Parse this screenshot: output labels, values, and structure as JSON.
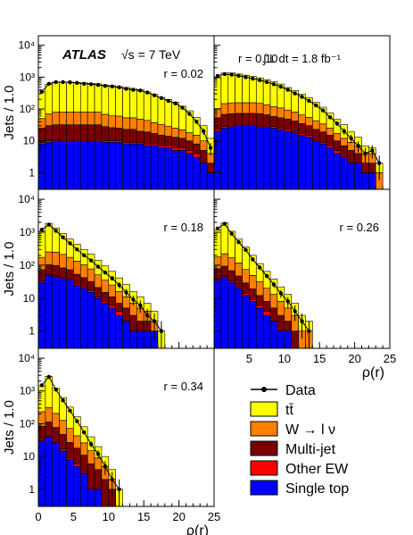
{
  "figure": {
    "experiment": "ATLAS",
    "energy_label": "√s = 7 TeV",
    "lumi_label": "∫ L dt = 1.8 fb⁻¹"
  },
  "legend": [
    {
      "label": "Data",
      "kind": "data"
    },
    {
      "label": "tt̄",
      "color": "#ffff00"
    },
    {
      "label": "W → l ν",
      "color": "#ff7f00"
    },
    {
      "label": "Multi-jet",
      "color": "#7a0000"
    },
    {
      "label": "Other EW",
      "color": "#ff0000"
    },
    {
      "label": "Single top",
      "color": "#0000ff"
    }
  ],
  "colors": {
    "single_top": "#0000ff",
    "other_ew": "#ff0000",
    "multijet": "#7a0000",
    "w_lnu": "#ff7f00",
    "ttbar": "#ffff00"
  },
  "chart_data": [
    {
      "type": "bar",
      "panel_label": "r = 0.02",
      "ylabel": "Jets / 1.0",
      "xlabel": "",
      "xlim": [
        0,
        25
      ],
      "ylim": [
        0.3,
        20000
      ],
      "yscale": "log",
      "yticks": [
        "1",
        "10",
        "10²",
        "10³",
        "10⁴"
      ],
      "xticks": [],
      "x_bin_starts": [
        0,
        1,
        2,
        3,
        4,
        5,
        6,
        7,
        8,
        9,
        10,
        11,
        12,
        13,
        14,
        15,
        16,
        17,
        18,
        19,
        20,
        21,
        22,
        23,
        24
      ],
      "stacks": {
        "single_top": [
          8,
          9,
          10,
          10,
          10,
          10,
          10,
          10,
          10,
          9,
          9,
          9,
          8,
          8,
          8,
          7,
          7,
          6,
          6,
          5,
          5,
          4,
          3,
          2,
          1
        ],
        "other_ew": [
          1,
          1,
          1,
          1,
          1,
          1,
          1,
          1,
          1,
          1,
          1,
          1,
          1,
          1,
          1,
          1,
          1,
          1,
          1,
          1,
          1,
          1,
          1,
          0,
          0
        ],
        "multijet": [
          16,
          20,
          21,
          21,
          21,
          21,
          21,
          21,
          21,
          18,
          16,
          15,
          14,
          14,
          11,
          11,
          9,
          8,
          7,
          7,
          6,
          5,
          4,
          3,
          1
        ],
        "w_lnu": [
          25,
          40,
          48,
          48,
          48,
          48,
          48,
          48,
          48,
          40,
          35,
          35,
          30,
          30,
          28,
          25,
          20,
          18,
          15,
          12,
          10,
          8,
          7,
          5,
          2
        ],
        "ttbar": [
          300,
          530,
          620,
          620,
          620,
          600,
          580,
          560,
          540,
          500,
          480,
          450,
          420,
          390,
          360,
          300,
          250,
          200,
          170,
          140,
          100,
          70,
          40,
          20,
          8
        ]
      },
      "data_values": [
        350,
        620,
        700,
        700,
        690,
        660,
        620,
        600,
        570,
        530,
        510,
        480,
        430,
        400,
        380,
        330,
        270,
        220,
        180,
        150,
        110,
        70,
        40,
        20,
        6
      ]
    },
    {
      "type": "bar",
      "panel_label": "r = 0.10",
      "ylabel": "",
      "xlabel": "",
      "xlim": [
        0,
        25
      ],
      "ylim": [
        0.3,
        20000
      ],
      "yscale": "log",
      "yticks": [],
      "xticks": [],
      "x_bin_starts": [
        0,
        1,
        2,
        3,
        4,
        5,
        6,
        7,
        8,
        9,
        10,
        11,
        12,
        13,
        14,
        15,
        16,
        17,
        18,
        19,
        20,
        21,
        22,
        23,
        24
      ],
      "stacks": {
        "single_top": [
          20,
          25,
          28,
          30,
          30,
          30,
          28,
          28,
          25,
          22,
          20,
          18,
          15,
          13,
          10,
          8,
          6,
          4,
          3,
          2,
          2,
          1,
          1,
          0,
          0
        ],
        "other_ew": [
          3,
          3,
          3,
          3,
          3,
          3,
          3,
          3,
          3,
          3,
          3,
          2,
          2,
          2,
          1,
          1,
          1,
          1,
          0,
          0,
          0,
          0,
          0,
          0,
          0
        ],
        "multijet": [
          30,
          40,
          40,
          40,
          40,
          40,
          40,
          35,
          30,
          28,
          25,
          22,
          18,
          15,
          12,
          10,
          8,
          5,
          4,
          3,
          2,
          1,
          1,
          0,
          0
        ],
        "w_lnu": [
          50,
          80,
          85,
          85,
          85,
          85,
          80,
          70,
          60,
          55,
          45,
          38,
          30,
          25,
          20,
          15,
          10,
          7,
          5,
          4,
          3,
          2,
          2,
          1,
          0
        ],
        "ttbar": [
          850,
          1200,
          1200,
          1100,
          1000,
          900,
          800,
          700,
          600,
          500,
          380,
          300,
          230,
          170,
          120,
          80,
          50,
          30,
          20,
          10,
          6,
          3,
          2,
          1,
          0
        ]
      },
      "data_values": [
        1100,
        1250,
        1200,
        1100,
        1000,
        900,
        800,
        700,
        600,
        500,
        400,
        310,
        240,
        180,
        130,
        90,
        55,
        35,
        20,
        12,
        7,
        4,
        5,
        2,
        0
      ]
    },
    {
      "type": "bar",
      "panel_label": "r = 0.18",
      "ylabel": "Jets / 1.0",
      "xlabel": "",
      "xlim": [
        0,
        25
      ],
      "ylim": [
        0.3,
        20000
      ],
      "yscale": "log",
      "yticks": [
        "1",
        "10",
        "10²",
        "10³",
        "10⁴"
      ],
      "xticks": [],
      "x_bin_starts": [
        0,
        1,
        2,
        3,
        4,
        5,
        6,
        7,
        8,
        9,
        10,
        11,
        12,
        13,
        14,
        15,
        16,
        17,
        18,
        19,
        20,
        21,
        22,
        23,
        24
      ],
      "stacks": {
        "single_top": [
          30,
          50,
          45,
          40,
          35,
          25,
          20,
          15,
          10,
          7,
          5,
          3,
          2,
          1,
          1,
          1,
          1,
          0,
          0,
          0,
          0,
          0,
          0,
          0,
          0
        ],
        "other_ew": [
          3,
          3,
          3,
          3,
          3,
          3,
          2,
          2,
          1,
          1,
          1,
          1,
          0,
          0,
          0,
          0,
          0,
          0,
          0,
          0,
          0,
          0,
          0,
          0,
          0
        ],
        "multijet": [
          40,
          50,
          50,
          40,
          35,
          25,
          20,
          15,
          10,
          7,
          5,
          3,
          3,
          2,
          1,
          1,
          0,
          0,
          0,
          0,
          0,
          0,
          0,
          0,
          0
        ],
        "w_lnu": [
          100,
          150,
          150,
          130,
          100,
          80,
          60,
          45,
          30,
          20,
          14,
          9,
          6,
          4,
          3,
          2,
          1,
          0,
          0,
          0,
          0,
          0,
          0,
          0,
          0
        ],
        "ttbar": [
          900,
          1600,
          1100,
          700,
          450,
          300,
          200,
          140,
          90,
          60,
          40,
          25,
          15,
          9,
          6,
          3,
          2,
          1,
          0,
          0,
          0,
          0,
          0,
          0,
          0
        ]
      },
      "data_values": [
        1200,
        1700,
        1100,
        700,
        460,
        300,
        200,
        140,
        90,
        60,
        40,
        25,
        15,
        9,
        6,
        3,
        2,
        1,
        0,
        0,
        0,
        0,
        0,
        0,
        0
      ]
    },
    {
      "type": "bar",
      "panel_label": "r = 0.26",
      "ylabel": "",
      "xlabel": "ρ(r)",
      "xlim": [
        0,
        25
      ],
      "ylim": [
        0.3,
        20000
      ],
      "yscale": "log",
      "yticks": [],
      "xticks": [
        "5",
        "10",
        "15",
        "20",
        "25"
      ],
      "x_bin_starts": [
        0,
        1,
        2,
        3,
        4,
        5,
        6,
        7,
        8,
        9,
        10,
        11,
        12,
        13,
        14,
        15,
        16,
        17,
        18,
        19,
        20,
        21,
        22,
        23,
        24
      ],
      "stacks": {
        "single_top": [
          35,
          45,
          30,
          20,
          12,
          8,
          5,
          3,
          2,
          1,
          1,
          0,
          0,
          0,
          0,
          0,
          0,
          0,
          0,
          0,
          0,
          0,
          0,
          0,
          0
        ],
        "other_ew": [
          3,
          3,
          3,
          2,
          2,
          1,
          1,
          1,
          0,
          0,
          0,
          0,
          0,
          0,
          0,
          0,
          0,
          0,
          0,
          0,
          0,
          0,
          0,
          0,
          0
        ],
        "multijet": [
          40,
          45,
          35,
          25,
          15,
          10,
          6,
          4,
          3,
          2,
          1,
          1,
          0,
          0,
          0,
          0,
          0,
          0,
          0,
          0,
          0,
          0,
          0,
          0,
          0
        ],
        "w_lnu": [
          100,
          130,
          100,
          70,
          45,
          30,
          20,
          12,
          8,
          5,
          3,
          2,
          1,
          1,
          0,
          0,
          0,
          0,
          0,
          0,
          0,
          0,
          0,
          0,
          0
        ],
        "ttbar": [
          1000,
          1700,
          900,
          500,
          280,
          150,
          80,
          45,
          25,
          14,
          8,
          4,
          2,
          1,
          0,
          0,
          0,
          0,
          0,
          0,
          0,
          0,
          0,
          0,
          0
        ]
      },
      "data_values": [
        1300,
        1800,
        900,
        500,
        290,
        150,
        85,
        47,
        26,
        14,
        8,
        4,
        2,
        1,
        0,
        0,
        0,
        0,
        0,
        0,
        0,
        0,
        0,
        0,
        0
      ]
    },
    {
      "type": "bar",
      "panel_label": "r = 0.34",
      "ylabel": "Jets / 1.0",
      "xlabel": "ρ(r)",
      "xlim": [
        0,
        25
      ],
      "ylim": [
        0.3,
        20000
      ],
      "yscale": "log",
      "yticks": [
        "1",
        "10",
        "10²",
        "10³",
        "10⁴"
      ],
      "xticks": [
        "0",
        "5",
        "10",
        "15",
        "20",
        "25"
      ],
      "x_bin_starts": [
        0,
        1,
        2,
        3,
        4,
        5,
        6,
        7,
        8,
        9,
        10,
        11,
        12,
        13,
        14,
        15,
        16,
        17,
        18,
        19,
        20,
        21,
        22,
        23,
        24
      ],
      "stacks": {
        "single_top": [
          30,
          40,
          25,
          15,
          8,
          5,
          3,
          1,
          1,
          0,
          0,
          0,
          0,
          0,
          0,
          0,
          0,
          0,
          0,
          0,
          0,
          0,
          0,
          0,
          0
        ],
        "other_ew": [
          3,
          3,
          2,
          2,
          1,
          1,
          0,
          0,
          0,
          0,
          0,
          0,
          0,
          0,
          0,
          0,
          0,
          0,
          0,
          0,
          0,
          0,
          0,
          0,
          0
        ],
        "multijet": [
          50,
          70,
          50,
          30,
          18,
          12,
          8,
          5,
          3,
          2,
          1,
          0,
          0,
          0,
          0,
          0,
          0,
          0,
          0,
          0,
          0,
          0,
          0,
          0,
          0
        ],
        "w_lnu": [
          150,
          200,
          130,
          80,
          45,
          25,
          15,
          9,
          5,
          3,
          1,
          0,
          0,
          0,
          0,
          0,
          0,
          0,
          0,
          0,
          0,
          0,
          0,
          0,
          0
        ],
        "ttbar": [
          1200,
          2500,
          1000,
          500,
          250,
          120,
          55,
          25,
          11,
          5,
          2,
          1,
          0,
          0,
          0,
          0,
          0,
          0,
          0,
          0,
          0,
          0,
          0,
          0,
          0
        ]
      },
      "data_values": [
        1500,
        2700,
        1100,
        520,
        250,
        120,
        55,
        24,
        12,
        5,
        2,
        1,
        0,
        0,
        0,
        0,
        0,
        0,
        0,
        0,
        0,
        0,
        0,
        0,
        0
      ]
    }
  ]
}
